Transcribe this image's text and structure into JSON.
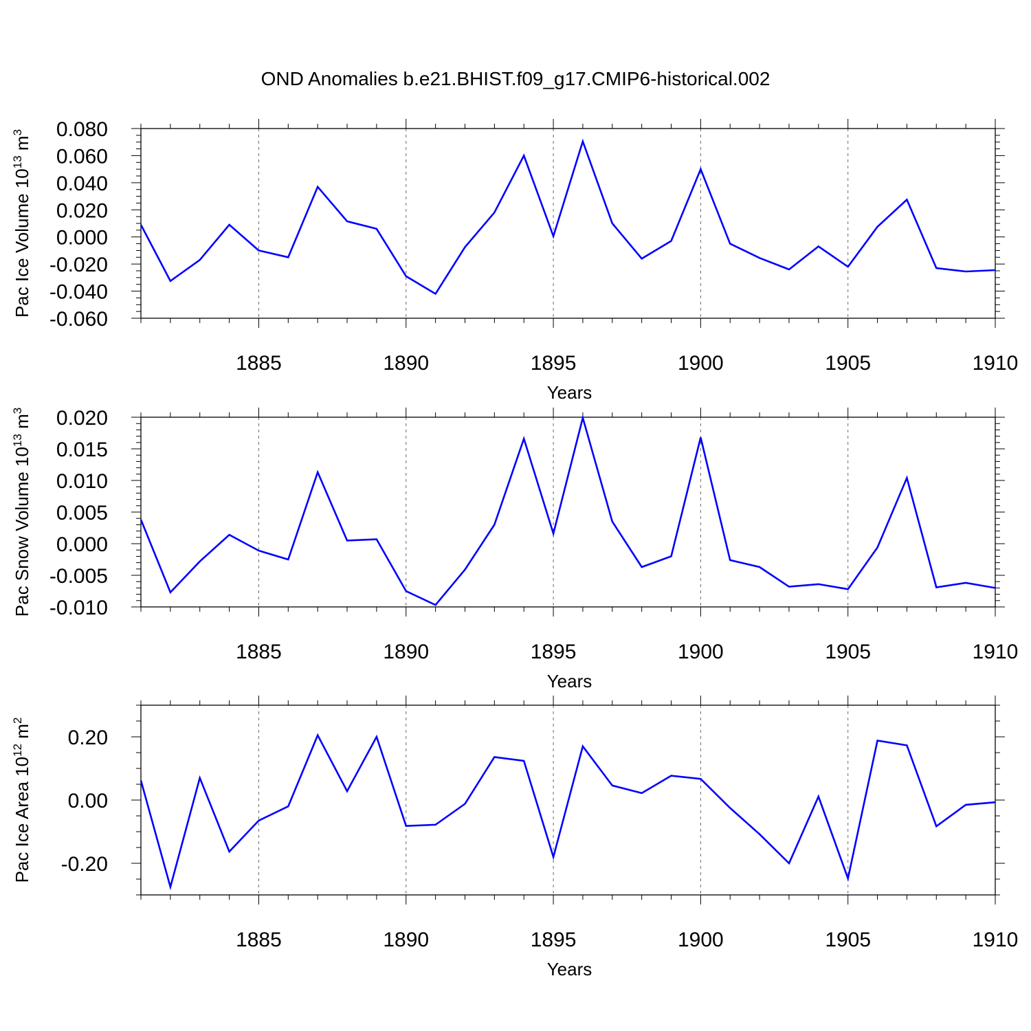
{
  "figure_title": "OND Anomalies b.e21.BHIST.f09_g17.CMIP6-historical.002",
  "colors": {
    "line": "#0000ff",
    "axes": "#000000",
    "grid": "#000000"
  },
  "chart_data": [
    {
      "type": "line",
      "title": "OND Anomalies b.e21.BHIST.f09_g17.CMIP6-historical.002",
      "ylabel": {
        "main": "Pac Ice Volume 10",
        "sup1": "13",
        "mid": " m",
        "sup2": "3"
      },
      "xlabel": "Years",
      "xlim": [
        1881,
        1910
      ],
      "ylim": [
        -0.06,
        0.08
      ],
      "xticks": [
        1885,
        1890,
        1895,
        1900,
        1905,
        1910
      ],
      "xtick_labels": [
        "1885",
        "1890",
        "1895",
        "1900",
        "1905",
        "1910"
      ],
      "yticks": [
        -0.06,
        -0.04,
        -0.02,
        0.0,
        0.02,
        0.04,
        0.06,
        0.08
      ],
      "ytick_labels": [
        "-0.060",
        "-0.040",
        "-0.020",
        "0.000",
        "0.020",
        "0.040",
        "0.060",
        "0.080"
      ],
      "y_minor_step": 0.005,
      "x": [
        1881,
        1882,
        1883,
        1884,
        1885,
        1886,
        1887,
        1888,
        1889,
        1890,
        1891,
        1892,
        1893,
        1894,
        1895,
        1896,
        1897,
        1898,
        1899,
        1900,
        1901,
        1902,
        1903,
        1904,
        1905,
        1906,
        1907,
        1908,
        1909,
        1910
      ],
      "series": [
        {
          "name": "Pac Ice Volume",
          "values": [
            0.009,
            -0.0325,
            -0.017,
            0.009,
            -0.01,
            -0.015,
            0.037,
            0.0115,
            0.006,
            -0.029,
            -0.042,
            -0.0075,
            0.018,
            0.06,
            0.0005,
            0.0705,
            0.01,
            -0.016,
            -0.003,
            0.05,
            -0.005,
            -0.0155,
            -0.024,
            -0.007,
            -0.022,
            0.0075,
            0.0275,
            -0.023,
            -0.0255,
            -0.0245
          ]
        }
      ]
    },
    {
      "type": "line",
      "ylabel": {
        "main": "Pac Snow Volume 10",
        "sup1": "13",
        "mid": " m",
        "sup2": "3"
      },
      "xlabel": "Years",
      "xlim": [
        1881,
        1910
      ],
      "ylim": [
        -0.01,
        0.02
      ],
      "xticks": [
        1885,
        1890,
        1895,
        1900,
        1905,
        1910
      ],
      "xtick_labels": [
        "1885",
        "1890",
        "1895",
        "1900",
        "1905",
        "1910"
      ],
      "yticks": [
        -0.01,
        -0.005,
        0.0,
        0.005,
        0.01,
        0.015,
        0.02
      ],
      "ytick_labels": [
        "-0.010",
        "-0.005",
        "0.000",
        "0.005",
        "0.010",
        "0.015",
        "0.020"
      ],
      "y_minor_step": 0.001,
      "x": [
        1881,
        1882,
        1883,
        1884,
        1885,
        1886,
        1887,
        1888,
        1889,
        1890,
        1891,
        1892,
        1893,
        1894,
        1895,
        1896,
        1897,
        1898,
        1899,
        1900,
        1901,
        1902,
        1903,
        1904,
        1905,
        1906,
        1907,
        1908,
        1909,
        1910
      ],
      "series": [
        {
          "name": "Pac Snow Volume",
          "values": [
            0.0038,
            -0.0077,
            -0.0028,
            0.0014,
            -0.0011,
            -0.0025,
            0.0113,
            0.0005,
            0.0007,
            -0.0075,
            -0.0097,
            -0.0041,
            0.003,
            0.0166,
            0.0016,
            0.0199,
            0.0035,
            -0.0037,
            -0.002,
            0.0168,
            -0.0026,
            -0.0037,
            -0.0068,
            -0.0064,
            -0.0072,
            -0.0006,
            0.0104,
            -0.0069,
            -0.0062,
            -0.007
          ]
        }
      ]
    },
    {
      "type": "line",
      "ylabel": {
        "main": "Pac Ice Area 10",
        "sup1": "12",
        "mid": " m",
        "sup2": "2"
      },
      "xlabel": "Years",
      "xlim": [
        1881,
        1910
      ],
      "ylim": [
        -0.3,
        0.3
      ],
      "xticks": [
        1885,
        1890,
        1895,
        1900,
        1905,
        1910
      ],
      "xtick_labels": [
        "1885",
        "1890",
        "1895",
        "1900",
        "1905",
        "1910"
      ],
      "yticks": [
        -0.2,
        0.0,
        0.2
      ],
      "ytick_labels": [
        "-0.20",
        "0.00",
        "0.20"
      ],
      "y_minor_step": 0.05,
      "x": [
        1881,
        1882,
        1883,
        1884,
        1885,
        1886,
        1887,
        1888,
        1889,
        1890,
        1891,
        1892,
        1893,
        1894,
        1895,
        1896,
        1897,
        1898,
        1899,
        1900,
        1901,
        1902,
        1903,
        1904,
        1905,
        1906,
        1907,
        1908,
        1909,
        1910
      ],
      "series": [
        {
          "name": "Pac Ice Area",
          "values": [
            0.062,
            -0.275,
            0.07,
            -0.163,
            -0.065,
            -0.02,
            0.205,
            0.028,
            0.2,
            -0.082,
            -0.078,
            -0.012,
            0.136,
            0.124,
            -0.18,
            0.17,
            0.046,
            0.022,
            0.077,
            0.067,
            -0.025,
            -0.108,
            -0.2,
            0.011,
            -0.248,
            0.188,
            0.173,
            -0.083,
            -0.015,
            -0.007
          ]
        }
      ]
    }
  ]
}
